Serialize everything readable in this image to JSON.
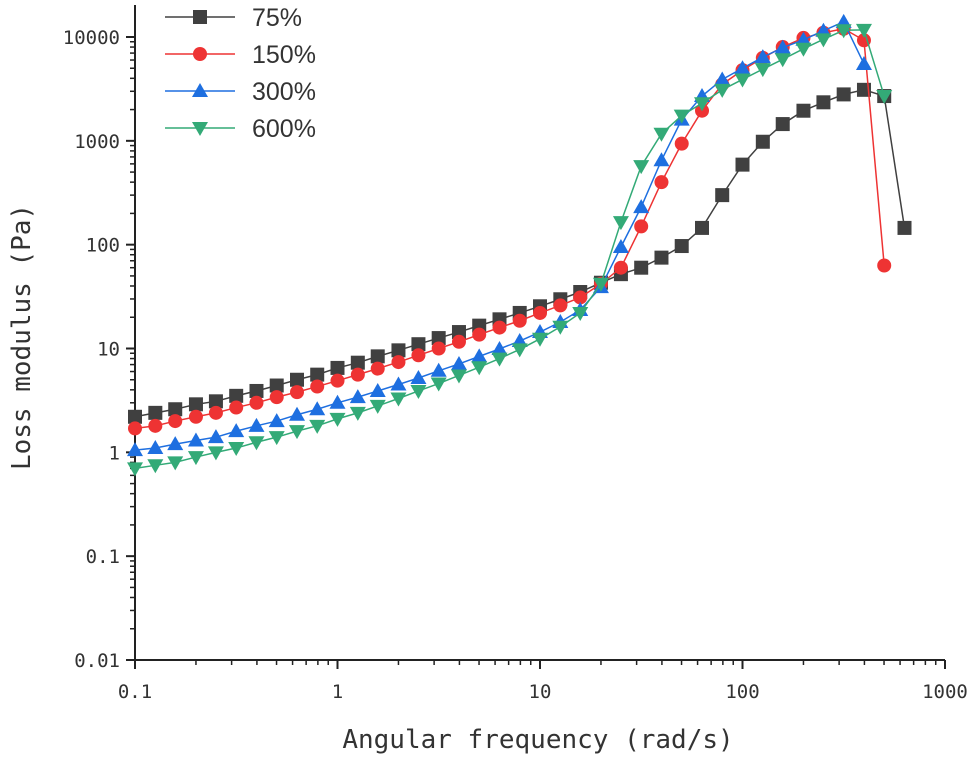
{
  "chart_data": {
    "type": "line",
    "title": "",
    "xlabel": "Angular frequency (rad/s)",
    "ylabel": "Loss modulus (Pa)",
    "xscale": "log",
    "yscale": "log",
    "xlim": [
      0.1,
      1000
    ],
    "ylim": [
      0.01,
      10000
    ],
    "x_ticks": [
      "0.1",
      "1",
      "10",
      "100",
      "1000"
    ],
    "y_ticks": [
      "0.01",
      "0.1",
      "1",
      "10",
      "100",
      "1000",
      "10000"
    ],
    "legend_position": "top-left",
    "series": [
      {
        "name": "75%",
        "color": "#404040",
        "marker": "square",
        "x": [
          0.1,
          0.126,
          0.158,
          0.2,
          0.251,
          0.316,
          0.398,
          0.501,
          0.631,
          0.794,
          1,
          1.26,
          1.58,
          2,
          2.51,
          3.16,
          3.98,
          5.01,
          6.31,
          7.94,
          10,
          12.6,
          15.8,
          20,
          25.1,
          31.6,
          39.8,
          50.1,
          63.1,
          79.4,
          100,
          126,
          158,
          200,
          251,
          316,
          398,
          501,
          631
        ],
        "y": [
          2.2,
          2.4,
          2.6,
          2.9,
          3.1,
          3.5,
          3.9,
          4.4,
          5,
          5.6,
          6.5,
          7.3,
          8.4,
          9.6,
          11,
          12.6,
          14.4,
          16.6,
          19.1,
          22,
          25.5,
          29.8,
          35,
          43,
          52,
          60,
          75,
          97,
          145,
          300,
          590,
          980,
          1450,
          1950,
          2350,
          2800,
          3100,
          2700,
          145
        ]
      },
      {
        "name": "150%",
        "color": "#ee3333",
        "marker": "circle",
        "x": [
          0.1,
          0.126,
          0.158,
          0.2,
          0.251,
          0.316,
          0.398,
          0.501,
          0.631,
          0.794,
          1,
          1.26,
          1.58,
          2,
          2.51,
          3.16,
          3.98,
          5.01,
          6.31,
          7.94,
          10,
          12.6,
          15.8,
          20,
          25.1,
          31.6,
          39.8,
          50.1,
          63.1,
          79.4,
          100,
          126,
          158,
          200,
          251,
          316,
          398,
          501
        ],
        "y": [
          1.7,
          1.8,
          2,
          2.2,
          2.4,
          2.7,
          3,
          3.4,
          3.8,
          4.3,
          4.9,
          5.6,
          6.4,
          7.4,
          8.6,
          10,
          11.6,
          13.6,
          15.9,
          18.5,
          22,
          26,
          31,
          42,
          60,
          150,
          400,
          940,
          1950,
          3500,
          4800,
          6300,
          8000,
          9800,
          11000,
          12000,
          9300,
          63
        ]
      },
      {
        "name": "300%",
        "color": "#1e6fe0",
        "marker": "triangle-up",
        "x": [
          0.1,
          0.126,
          0.158,
          0.2,
          0.251,
          0.316,
          0.398,
          0.501,
          0.631,
          0.794,
          1,
          1.26,
          1.58,
          2,
          2.51,
          3.16,
          3.98,
          5.01,
          6.31,
          7.94,
          10,
          12.6,
          15.8,
          20,
          25.1,
          31.6,
          39.8,
          50.1,
          63.1,
          79.4,
          100,
          126,
          158,
          200,
          251,
          316,
          398
        ],
        "y": [
          1.05,
          1.1,
          1.2,
          1.3,
          1.4,
          1.6,
          1.8,
          2,
          2.3,
          2.6,
          3,
          3.4,
          3.9,
          4.5,
          5.2,
          6.1,
          7.1,
          8.4,
          9.9,
          11.8,
          14.4,
          18,
          23.5,
          39,
          95,
          230,
          650,
          1600,
          2700,
          3900,
          5000,
          6400,
          7900,
          9400,
          11500,
          14000,
          5500
        ]
      },
      {
        "name": "600%",
        "color": "#33aa77",
        "marker": "triangle-down",
        "x": [
          0.1,
          0.126,
          0.158,
          0.2,
          0.251,
          0.316,
          0.398,
          0.501,
          0.631,
          0.794,
          1,
          1.26,
          1.58,
          2,
          2.51,
          3.16,
          3.98,
          5.01,
          6.31,
          7.94,
          10,
          12.6,
          15.8,
          20,
          25.1,
          31.6,
          39.8,
          50.1,
          63.1,
          79.4,
          100,
          126,
          158,
          200,
          251,
          316,
          398,
          501
        ],
        "y": [
          0.7,
          0.75,
          0.8,
          0.9,
          1,
          1.1,
          1.25,
          1.4,
          1.6,
          1.8,
          2.1,
          2.4,
          2.8,
          3.3,
          3.9,
          4.6,
          5.5,
          6.6,
          8,
          9.8,
          12.4,
          16.2,
          22,
          42,
          165,
          570,
          1170,
          1750,
          2300,
          3100,
          3900,
          4900,
          6100,
          7700,
          9500,
          11600,
          11700,
          2700
        ]
      }
    ]
  }
}
